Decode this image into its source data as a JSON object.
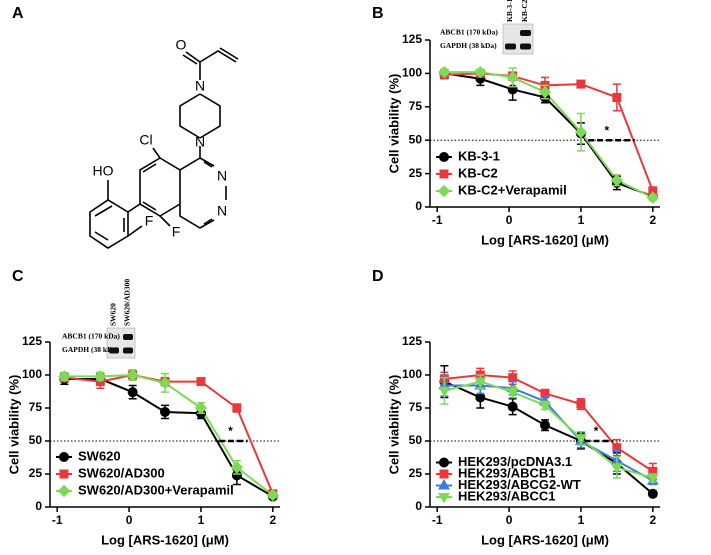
{
  "panel": "A",
  "structure_labels": [
    "O",
    "N",
    "N",
    "N",
    "N",
    "Cl",
    "HO",
    "F",
    "F"
  ],
  "chart_data": [
    {
      "type": "line",
      "panel": "B",
      "x_label": "Log [ARS-1620] (μM)",
      "y_label": "Cell viability (%)",
      "x": [
        -0.9,
        -0.4,
        0.05,
        0.5,
        1,
        1.5,
        2
      ],
      "xlim": [
        -1.1,
        2.1
      ],
      "xticks": [
        -1,
        0,
        1,
        2
      ],
      "ylim": [
        0,
        125
      ],
      "yticks": [
        0,
        25,
        50,
        75,
        100,
        125
      ],
      "reference_line": 50,
      "annotation": {
        "text": "*",
        "x": [
          1.1,
          1.75
        ],
        "y": 50
      },
      "legend": "lower left",
      "inset": {
        "rows": [
          "ABCB1 (170 kDa)",
          "GAPDH (38 kDa)"
        ],
        "lanes": [
          "KB-3-1",
          "KB-C2"
        ]
      },
      "series": [
        {
          "name": "KB-3-1",
          "color": "#000000",
          "marker": "circle",
          "values": [
            100,
            96,
            88,
            82,
            55,
            18,
            8
          ],
          "errors": [
            3,
            5,
            8,
            4,
            8,
            5,
            2
          ]
        },
        {
          "name": "KB-C2",
          "color": "#e8383d",
          "marker": "square",
          "values": [
            99,
            100,
            98,
            91,
            92,
            82,
            12
          ],
          "errors": [
            3,
            2,
            3,
            6,
            2,
            10,
            3
          ]
        },
        {
          "name": "KB-C2+Verapamil",
          "color": "#7ed957",
          "marker": "diamond",
          "values": [
            101,
            101,
            97,
            86,
            56,
            20,
            7
          ],
          "errors": [
            2,
            2,
            7,
            5,
            14,
            4,
            2
          ]
        }
      ]
    },
    {
      "type": "line",
      "panel": "C",
      "x_label": "Log [ARS-1620] (μM)",
      "y_label": "Cell viability (%)",
      "x": [
        -0.9,
        -0.4,
        0.05,
        0.5,
        1,
        1.5,
        2
      ],
      "xlim": [
        -1.1,
        2.1
      ],
      "xticks": [
        -1,
        0,
        1,
        2
      ],
      "ylim": [
        0,
        125
      ],
      "yticks": [
        0,
        25,
        50,
        75,
        100,
        125
      ],
      "reference_line": 50,
      "annotation": {
        "text": "*",
        "x": [
          1.25,
          1.65
        ],
        "y": 50
      },
      "legend": "lower left",
      "inset": {
        "rows": [
          "ABCB1 (170 kDa)",
          "GAPDH (38 kDa)"
        ],
        "lanes": [
          "SW620",
          "SW620/AD300"
        ]
      },
      "series": [
        {
          "name": "SW620",
          "color": "#000000",
          "marker": "circle",
          "values": [
            97,
            97,
            87,
            72,
            71,
            24,
            8
          ],
          "errors": [
            4,
            4,
            5,
            5,
            4,
            7,
            2
          ]
        },
        {
          "name": "SW620/AD300",
          "color": "#e8383d",
          "marker": "square",
          "values": [
            98,
            95,
            100,
            95,
            95,
            75,
            10
          ],
          "errors": [
            3,
            5,
            3,
            3,
            2,
            3,
            2
          ]
        },
        {
          "name": "SW620/AD300+Verapamil",
          "color": "#7ed957",
          "marker": "diamond",
          "values": [
            99,
            99,
            100,
            94,
            75,
            30,
            9
          ],
          "errors": [
            3,
            3,
            4,
            7,
            4,
            5,
            2
          ]
        }
      ]
    },
    {
      "type": "line",
      "panel": "D",
      "x_label": "Log [ARS-1620] (μM)",
      "y_label": "Cell viability (%)",
      "x": [
        -0.9,
        -0.4,
        0.05,
        0.5,
        1,
        1.5,
        2
      ],
      "xlim": [
        -1.1,
        2.1
      ],
      "xticks": [
        -1,
        0,
        1,
        2
      ],
      "ylim": [
        0,
        125
      ],
      "yticks": [
        0,
        25,
        50,
        75,
        100,
        125
      ],
      "reference_line": 50,
      "annotation": {
        "text": "*",
        "x": [
          1.05,
          1.45
        ],
        "y": 50
      },
      "legend": "lower left",
      "series": [
        {
          "name": "HEK293/pcDNA3.1",
          "color": "#000000",
          "marker": "circle",
          "values": [
            95,
            83,
            76,
            62,
            50,
            33,
            10
          ],
          "errors": [
            12,
            8,
            6,
            4,
            6,
            8,
            2
          ]
        },
        {
          "name": "HEK293/ABCB1",
          "color": "#e8383d",
          "marker": "square",
          "values": [
            97,
            100,
            98,
            86,
            78,
            45,
            27
          ],
          "errors": [
            5,
            5,
            5,
            3,
            4,
            6,
            6
          ]
        },
        {
          "name": "HEK293/ABCG2-WT",
          "color": "#3d7be0",
          "marker": "triangle",
          "values": [
            92,
            92,
            90,
            80,
            50,
            35,
            20
          ],
          "errors": [
            8,
            6,
            5,
            3,
            5,
            8,
            3
          ]
        },
        {
          "name": "HEK293/ABCC1",
          "color": "#7ed957",
          "marker": "triangle-down",
          "values": [
            88,
            95,
            87,
            77,
            52,
            30,
            22
          ],
          "errors": [
            10,
            5,
            4,
            3,
            5,
            8,
            3
          ]
        }
      ]
    }
  ]
}
